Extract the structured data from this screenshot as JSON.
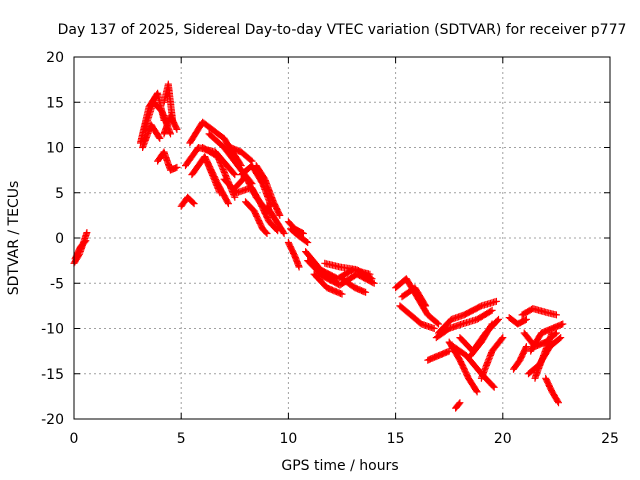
{
  "chart_data": {
    "type": "scatter",
    "title": "Day 137 of 2025, Sidereal Day-to-day VTEC variation (SDTVAR) for receiver p777",
    "xlabel": "GPS time / hours",
    "ylabel": "SDTVAR / TECUs",
    "xlim": [
      0,
      25
    ],
    "ylim": [
      -20,
      20
    ],
    "xticks": [
      "0",
      "5",
      "10",
      "15",
      "20",
      "25"
    ],
    "yticks": [
      "-20",
      "-15",
      "-10",
      "-5",
      "0",
      "5",
      "10",
      "15",
      "20"
    ],
    "grid": true,
    "marker": "plus",
    "color": "#ff0000",
    "tracks": [
      {
        "x": [
          0.0,
          0.25,
          0.6
        ],
        "y": [
          -2.8,
          -1.8,
          0.6
        ]
      },
      {
        "x": [
          0.05,
          0.3,
          0.55
        ],
        "y": [
          -2.3,
          -1.0,
          -0.3
        ]
      },
      {
        "x": [
          3.1,
          3.5,
          3.9,
          4.2
        ],
        "y": [
          10.5,
          14.5,
          16.0,
          13.0
        ]
      },
      {
        "x": [
          3.2,
          3.6,
          4.0
        ],
        "y": [
          10.0,
          12.5,
          11.0
        ]
      },
      {
        "x": [
          3.3,
          3.7,
          4.1,
          4.5
        ],
        "y": [
          12.0,
          15.0,
          14.0,
          11.5
        ]
      },
      {
        "x": [
          3.9,
          4.2,
          4.5,
          4.8
        ],
        "y": [
          8.5,
          9.5,
          7.5,
          7.8
        ]
      },
      {
        "x": [
          4.2,
          4.4,
          4.6
        ],
        "y": [
          15.0,
          17.0,
          13.0
        ]
      },
      {
        "x": [
          4.2,
          4.5,
          4.8
        ],
        "y": [
          11.5,
          13.5,
          12.0
        ]
      },
      {
        "x": [
          5.0,
          5.3,
          5.6
        ],
        "y": [
          3.5,
          4.5,
          3.8
        ]
      },
      {
        "x": [
          5.4,
          6.0,
          7.0,
          7.8
        ],
        "y": [
          10.5,
          12.8,
          11.0,
          8.0
        ]
      },
      {
        "x": [
          5.2,
          5.8,
          6.6,
          7.5
        ],
        "y": [
          8.0,
          10.0,
          9.5,
          7.0
        ]
      },
      {
        "x": [
          5.5,
          6.1,
          6.8
        ],
        "y": [
          7.0,
          9.0,
          5.0
        ]
      },
      {
        "x": [
          6.0,
          6.7,
          7.5
        ],
        "y": [
          10.0,
          9.0,
          4.5
        ]
      },
      {
        "x": [
          6.3,
          7.0,
          7.8,
          8.3
        ],
        "y": [
          11.5,
          10.0,
          7.5,
          6.0
        ]
      },
      {
        "x": [
          6.2,
          6.7,
          7.2
        ],
        "y": [
          8.5,
          6.0,
          3.8
        ]
      },
      {
        "x": [
          7.3,
          7.8,
          8.3
        ],
        "y": [
          10.0,
          9.5,
          8.5
        ]
      },
      {
        "x": [
          7.0,
          7.6,
          8.2
        ],
        "y": [
          6.5,
          5.0,
          5.5
        ]
      },
      {
        "x": [
          7.8,
          8.3,
          8.8,
          9.2
        ],
        "y": [
          7.0,
          8.0,
          6.0,
          3.5
        ]
      },
      {
        "x": [
          7.5,
          8.0,
          8.5,
          9.0
        ],
        "y": [
          5.5,
          6.8,
          4.5,
          3.0
        ]
      },
      {
        "x": [
          8.0,
          8.4,
          8.8,
          9.0
        ],
        "y": [
          4.0,
          3.0,
          1.0,
          0.5
        ]
      },
      {
        "x": [
          8.5,
          8.9,
          9.3,
          9.6
        ],
        "y": [
          8.0,
          6.5,
          4.0,
          2.5
        ]
      },
      {
        "x": [
          8.3,
          8.7,
          9.1,
          9.5
        ],
        "y": [
          5.5,
          3.8,
          1.8,
          0.8
        ]
      },
      {
        "x": [
          9.0,
          9.4,
          9.8
        ],
        "y": [
          3.5,
          2.0,
          0.5
        ]
      },
      {
        "x": [
          10.0,
          10.3,
          10.7
        ],
        "y": [
          1.8,
          1.0,
          0.5
        ]
      },
      {
        "x": [
          10.1,
          10.5,
          10.9
        ],
        "y": [
          1.0,
          0.2,
          -0.5
        ]
      },
      {
        "x": [
          10.0,
          10.3,
          10.5
        ],
        "y": [
          -0.5,
          -2.0,
          -3.2
        ]
      },
      {
        "x": [
          10.8,
          11.5,
          12.3,
          13.0,
          13.8
        ],
        "y": [
          -1.5,
          -3.5,
          -4.5,
          -3.5,
          -4.0
        ]
      },
      {
        "x": [
          10.9,
          11.6,
          12.4,
          13.2,
          14.0
        ],
        "y": [
          -2.5,
          -4.2,
          -5.2,
          -4.0,
          -5.0
        ]
      },
      {
        "x": [
          11.2,
          11.8,
          12.5
        ],
        "y": [
          -4.0,
          -5.5,
          -6.2
        ]
      },
      {
        "x": [
          11.7,
          12.4,
          13.2,
          13.9
        ],
        "y": [
          -2.8,
          -3.2,
          -3.5,
          -4.5
        ]
      },
      {
        "x": [
          12.5,
          13.1,
          13.6
        ],
        "y": [
          -4.5,
          -5.5,
          -6.0
        ]
      },
      {
        "x": [
          15.0,
          15.5,
          16.0,
          16.5,
          17.0
        ],
        "y": [
          -5.5,
          -4.5,
          -6.5,
          -8.5,
          -9.5
        ]
      },
      {
        "x": [
          15.2,
          15.7,
          16.2,
          16.8
        ],
        "y": [
          -7.5,
          -8.5,
          -9.5,
          -10.0
        ]
      },
      {
        "x": [
          15.3,
          15.9,
          16.4
        ],
        "y": [
          -6.5,
          -5.5,
          -7.5
        ]
      },
      {
        "x": [
          16.5,
          17.0,
          17.5
        ],
        "y": [
          -13.5,
          -13.0,
          -12.5
        ]
      },
      {
        "x": [
          17.0,
          17.6,
          18.2,
          19.0,
          19.7
        ],
        "y": [
          -10.5,
          -9.0,
          -8.5,
          -7.5,
          -7.0
        ]
      },
      {
        "x": [
          16.9,
          17.5,
          18.1,
          18.8,
          19.5
        ],
        "y": [
          -11.0,
          -10.0,
          -9.5,
          -9.0,
          -8.0
        ]
      },
      {
        "x": [
          17.5,
          18.0,
          18.4,
          18.8
        ],
        "y": [
          -11.5,
          -13.5,
          -15.5,
          -17.0
        ]
      },
      {
        "x": [
          17.7,
          18.3,
          19.0,
          19.6
        ],
        "y": [
          -12.0,
          -13.0,
          -15.0,
          -16.5
        ]
      },
      {
        "x": [
          18.0,
          18.6,
          19.2,
          19.8
        ],
        "y": [
          -11.0,
          -12.5,
          -10.5,
          -9.0
        ]
      },
      {
        "x": [
          18.5,
          19.0,
          19.5
        ],
        "y": [
          -13.0,
          -11.5,
          -9.5
        ]
      },
      {
        "x": [
          17.8,
          18.0
        ],
        "y": [
          -18.8,
          -18.2
        ]
      },
      {
        "x": [
          19.0,
          19.5,
          20.0
        ],
        "y": [
          -15.5,
          -12.5,
          -11.0
        ]
      },
      {
        "x": [
          20.3,
          20.7,
          21.1
        ],
        "y": [
          -8.8,
          -9.5,
          -9.0
        ]
      },
      {
        "x": [
          20.5,
          20.8,
          21.1
        ],
        "y": [
          -14.5,
          -13.5,
          -12.0
        ]
      },
      {
        "x": [
          20.9,
          21.4,
          22.0,
          22.5
        ],
        "y": [
          -8.5,
          -7.8,
          -8.2,
          -8.5
        ]
      },
      {
        "x": [
          21.0,
          21.5,
          22.0,
          22.5
        ],
        "y": [
          -10.5,
          -12.0,
          -11.5,
          -10.5
        ]
      },
      {
        "x": [
          21.3,
          21.8,
          22.3,
          22.8
        ],
        "y": [
          -12.5,
          -10.5,
          -10.0,
          -9.5
        ]
      },
      {
        "x": [
          21.2,
          21.7,
          22.2,
          22.7
        ],
        "y": [
          -15.0,
          -14.0,
          -12.0,
          -11.0
        ]
      },
      {
        "x": [
          21.5,
          21.9,
          22.3
        ],
        "y": [
          -15.5,
          -13.0,
          -10.5
        ]
      },
      {
        "x": [
          22.0,
          22.3,
          22.6
        ],
        "y": [
          -15.5,
          -17.0,
          -18.2
        ]
      }
    ]
  }
}
